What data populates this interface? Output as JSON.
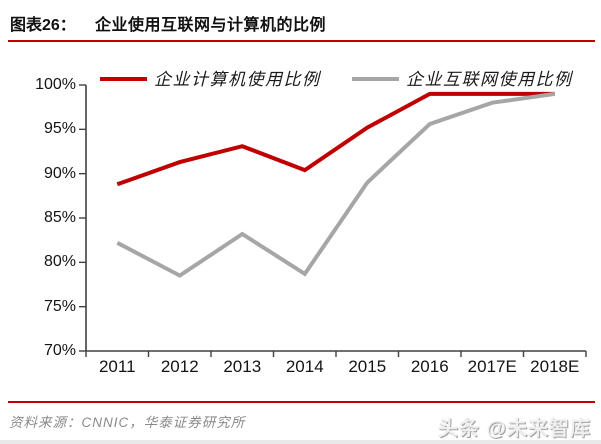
{
  "header": {
    "label": "图表26：",
    "title": "企业使用互联网与计算机的比例"
  },
  "chart_data": {
    "type": "line",
    "categories": [
      "2011",
      "2012",
      "2013",
      "2014",
      "2015",
      "2016",
      "2017E",
      "2018E"
    ],
    "series": [
      {
        "name": "企业计算机使用比例",
        "color": "#C00000",
        "values": [
          88.8,
          91.3,
          93.1,
          90.4,
          95.2,
          99.0,
          99.0,
          99.0
        ]
      },
      {
        "name": "企业互联网使用比例",
        "color": "#A6A6A6",
        "values": [
          82.2,
          78.5,
          83.2,
          78.7,
          89.0,
          95.6,
          98.0,
          99.0
        ]
      }
    ],
    "ylim": [
      70,
      100
    ],
    "ytick_step": 5,
    "ytick_suffix": "%",
    "grid": false,
    "legend_position": "top",
    "axis_color": "#404040"
  },
  "footer": {
    "source": "资料来源：CNNIC，华泰证券研究所",
    "watermark": "头条 @未来智库"
  },
  "colors": {
    "accent": "#C00000",
    "series_gray": "#A6A6A6",
    "source_text": "#8a8a8a"
  }
}
